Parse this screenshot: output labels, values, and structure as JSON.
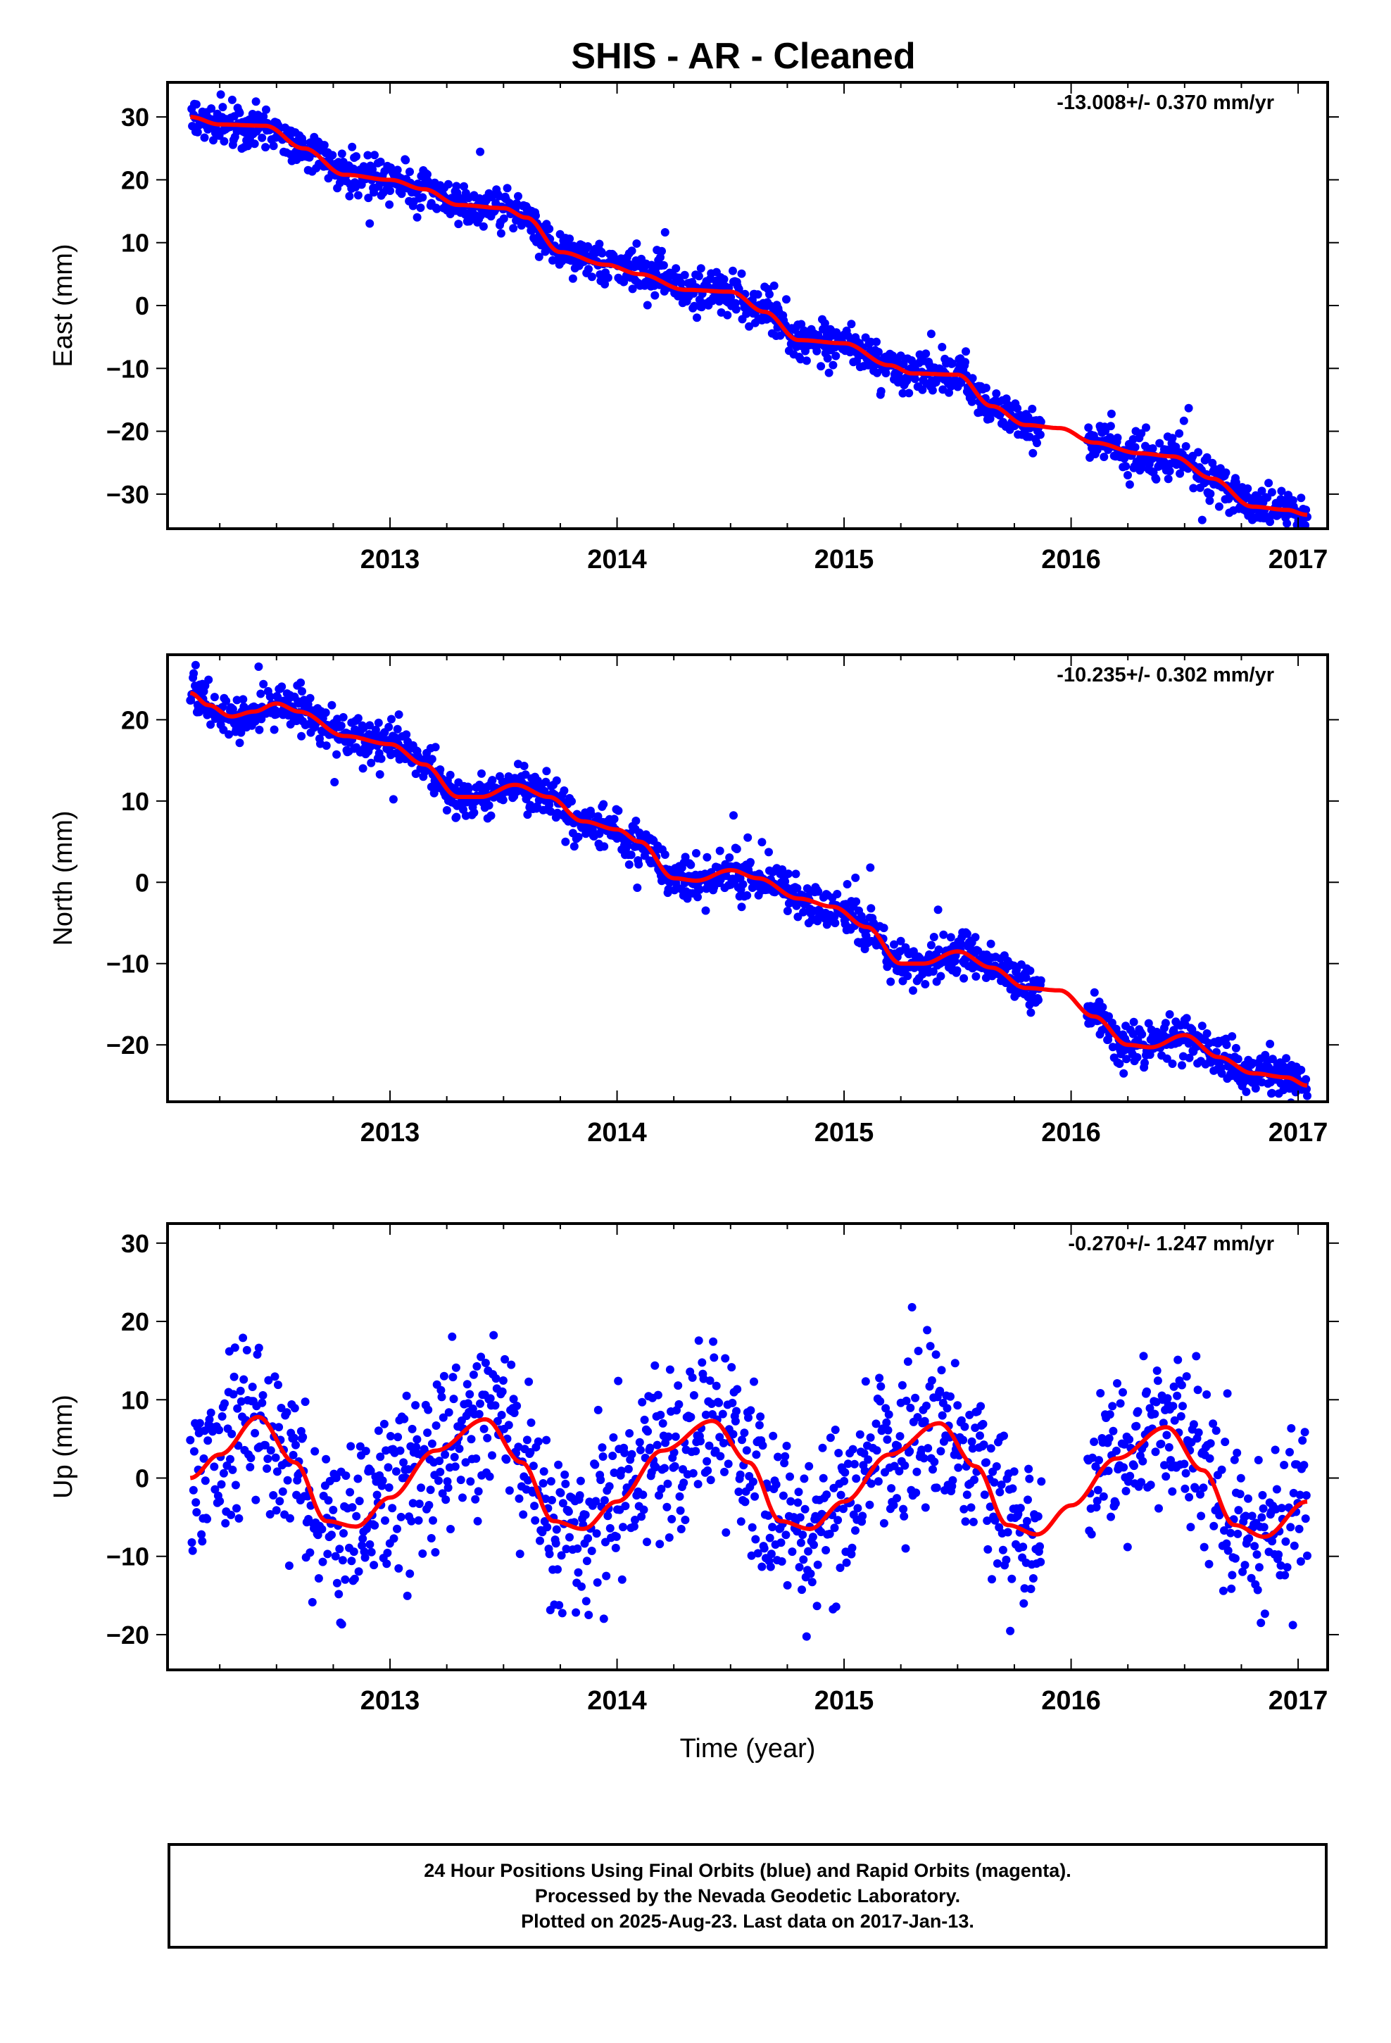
{
  "title": "SHIS  - AR - Cleaned",
  "colors": {
    "series": "#0000ff",
    "fit": "#ff0000",
    "frame": "#000000"
  },
  "footer": {
    "line1": "24 Hour Positions Using Final Orbits (blue) and Rapid Orbits (magenta).",
    "line2": "Processed by the Nevada Geodetic Laboratory.",
    "line3": "Plotted on 2025-Aug-23. Last data on 2017-Jan-13."
  },
  "chart_data": [
    {
      "type": "scatter",
      "title": "SHIS  - AR - Cleaned",
      "ylabel": "East (mm)",
      "xlabel": "",
      "annotation": "-13.008+/- 0.370 mm/yr",
      "xlim": [
        2012.02,
        2017.13
      ],
      "ylim": [
        -35.5,
        35.5
      ],
      "x_ticks": [
        2013,
        2014,
        2015,
        2016,
        2017
      ],
      "y_ticks": [
        30,
        20,
        10,
        0,
        -10,
        -20,
        -30
      ],
      "data_range": [
        2012.12,
        2017.04
      ],
      "gaps": [
        [
          2015.87,
          2016.07
        ]
      ],
      "fit_curve": [
        [
          2012.12,
          30.0
        ],
        [
          2012.25,
          28.8
        ],
        [
          2012.45,
          28.6
        ],
        [
          2012.62,
          25.0
        ],
        [
          2012.8,
          20.8
        ],
        [
          2013.0,
          20.0
        ],
        [
          2013.15,
          18.5
        ],
        [
          2013.3,
          16.0
        ],
        [
          2013.5,
          15.5
        ],
        [
          2013.6,
          14.0
        ],
        [
          2013.75,
          8.5
        ],
        [
          2013.95,
          6.5
        ],
        [
          2014.1,
          5.0
        ],
        [
          2014.3,
          2.5
        ],
        [
          2014.5,
          2.2
        ],
        [
          2014.65,
          -1.0
        ],
        [
          2014.8,
          -5.5
        ],
        [
          2015.0,
          -6.0
        ],
        [
          2015.2,
          -9.5
        ],
        [
          2015.3,
          -10.8
        ],
        [
          2015.5,
          -11.0
        ],
        [
          2015.65,
          -16.0
        ],
        [
          2015.8,
          -19.0
        ],
        [
          2015.95,
          -19.5
        ],
        [
          2016.1,
          -21.8
        ],
        [
          2016.3,
          -23.5
        ],
        [
          2016.45,
          -24.0
        ],
        [
          2016.62,
          -27.5
        ],
        [
          2016.8,
          -32.0
        ],
        [
          2016.95,
          -32.5
        ],
        [
          2017.04,
          -33.3
        ]
      ],
      "scatter_sigma": 1.6,
      "outlier_sigma": 3.5,
      "point_count": 1650
    },
    {
      "type": "scatter",
      "ylabel": "North (mm)",
      "xlabel": "",
      "annotation": "-10.235+/- 0.302 mm/yr",
      "xlim": [
        2012.02,
        2017.13
      ],
      "ylim": [
        -27,
        28
      ],
      "x_ticks": [
        2013,
        2014,
        2015,
        2016,
        2017
      ],
      "y_ticks": [
        20,
        10,
        0,
        -10,
        -20
      ],
      "data_range": [
        2012.12,
        2017.04
      ],
      "gaps": [
        [
          2015.87,
          2016.07
        ]
      ],
      "fit_curve": [
        [
          2012.12,
          23.3
        ],
        [
          2012.2,
          21.8
        ],
        [
          2012.3,
          20.4
        ],
        [
          2012.4,
          21.0
        ],
        [
          2012.5,
          22.0
        ],
        [
          2012.6,
          21.0
        ],
        [
          2012.8,
          18.0
        ],
        [
          2013.0,
          17.0
        ],
        [
          2013.15,
          14.5
        ],
        [
          2013.3,
          10.5
        ],
        [
          2013.4,
          10.5
        ],
        [
          2013.55,
          12.0
        ],
        [
          2013.7,
          10.5
        ],
        [
          2013.85,
          7.5
        ],
        [
          2014.0,
          6.5
        ],
        [
          2014.1,
          5.0
        ],
        [
          2014.25,
          0.5
        ],
        [
          2014.35,
          0.2
        ],
        [
          2014.5,
          1.5
        ],
        [
          2014.62,
          0.5
        ],
        [
          2014.8,
          -2.0
        ],
        [
          2014.95,
          -3.0
        ],
        [
          2015.1,
          -5.5
        ],
        [
          2015.25,
          -10.0
        ],
        [
          2015.35,
          -10.0
        ],
        [
          2015.5,
          -8.5
        ],
        [
          2015.65,
          -10.5
        ],
        [
          2015.8,
          -13.0
        ],
        [
          2015.95,
          -13.3
        ],
        [
          2016.1,
          -16.5
        ],
        [
          2016.25,
          -20.0
        ],
        [
          2016.35,
          -20.3
        ],
        [
          2016.5,
          -18.8
        ],
        [
          2016.65,
          -21.5
        ],
        [
          2016.8,
          -23.5
        ],
        [
          2016.95,
          -24.0
        ],
        [
          2017.04,
          -25.0
        ]
      ],
      "scatter_sigma": 1.3,
      "outlier_sigma": 3.0,
      "point_count": 1650
    },
    {
      "type": "scatter",
      "ylabel": "Up (mm)",
      "xlabel": "Time (year)",
      "annotation": "-0.270+/- 1.247 mm/yr",
      "xlim": [
        2012.02,
        2017.13
      ],
      "ylim": [
        -24.5,
        32.5
      ],
      "x_ticks": [
        2013,
        2014,
        2015,
        2016,
        2017
      ],
      "y_ticks": [
        30,
        20,
        10,
        0,
        -10,
        -20
      ],
      "data_range": [
        2012.12,
        2017.04
      ],
      "gaps": [
        [
          2015.87,
          2016.07
        ]
      ],
      "fit_curve": [
        [
          2012.12,
          0.0
        ],
        [
          2012.25,
          3.0
        ],
        [
          2012.42,
          7.8
        ],
        [
          2012.58,
          2.0
        ],
        [
          2012.72,
          -5.5
        ],
        [
          2012.85,
          -6.2
        ],
        [
          2013.0,
          -2.5
        ],
        [
          2013.2,
          3.5
        ],
        [
          2013.42,
          7.5
        ],
        [
          2013.58,
          2.0
        ],
        [
          2013.72,
          -5.5
        ],
        [
          2013.85,
          -6.5
        ],
        [
          2014.0,
          -3.0
        ],
        [
          2014.2,
          3.5
        ],
        [
          2014.42,
          7.3
        ],
        [
          2014.58,
          2.0
        ],
        [
          2014.72,
          -5.5
        ],
        [
          2014.85,
          -6.5
        ],
        [
          2015.0,
          -3.0
        ],
        [
          2015.2,
          3.0
        ],
        [
          2015.42,
          7.0
        ],
        [
          2015.58,
          1.5
        ],
        [
          2015.72,
          -6.0
        ],
        [
          2015.85,
          -7.2
        ],
        [
          2016.0,
          -3.5
        ],
        [
          2016.2,
          2.5
        ],
        [
          2016.42,
          6.5
        ],
        [
          2016.58,
          1.0
        ],
        [
          2016.72,
          -6.0
        ],
        [
          2016.85,
          -7.5
        ],
        [
          2017.04,
          -3.0
        ]
      ],
      "scatter_sigma": 5.2,
      "outlier_sigma": 9.0,
      "point_count": 1400
    }
  ]
}
